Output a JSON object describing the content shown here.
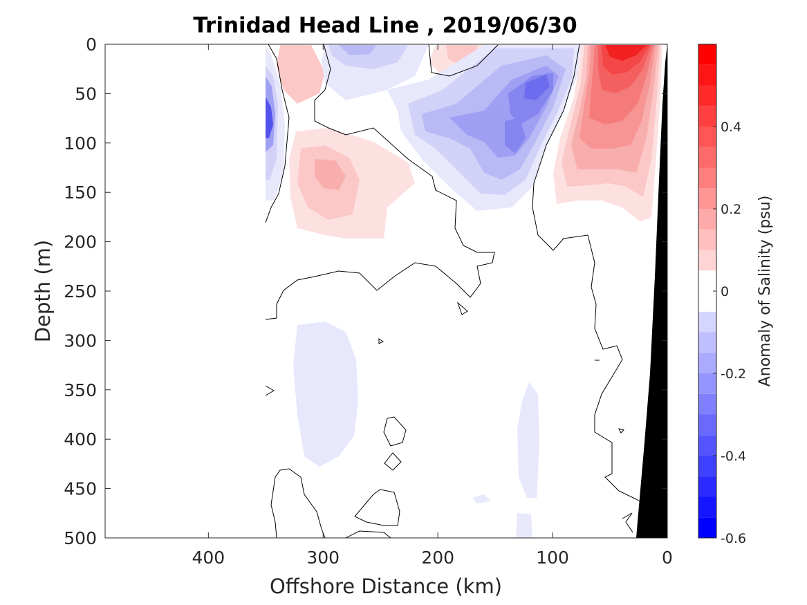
{
  "chart_data": {
    "type": "heatmap",
    "title": "Trinidad Head Line , 2019/06/30",
    "xlabel": "Offshore Distance (km)",
    "ylabel": "Depth (m)",
    "colorbar_label": "Anomaly of Salinity (psu)",
    "xlim": [
      490,
      0
    ],
    "ylim": [
      500,
      0
    ],
    "x_ticks": [
      400,
      300,
      200,
      100,
      0
    ],
    "y_ticks": [
      0,
      50,
      100,
      150,
      200,
      250,
      300,
      350,
      400,
      450,
      500
    ],
    "clim": [
      -0.6,
      0.6
    ],
    "colorbar_ticks": [
      0.4,
      0.2,
      0,
      -0.2,
      -0.4,
      -0.6
    ],
    "contour_levels_step": 0.05,
    "zero_contour": true,
    "colormap": "blue-white-red",
    "colors": {
      "negative": "#0000ff",
      "zero": "#ffffff",
      "positive": "#ff0000",
      "bathymetry": "#000000",
      "contour": "#000000"
    },
    "features": [
      {
        "name": "nearshore surface high",
        "x": [
          80,
          10
        ],
        "depth": [
          0,
          180
        ],
        "peak": 0.55
      },
      {
        "name": "offshore subsurface high",
        "x": [
          330,
          270
        ],
        "depth": [
          90,
          200
        ],
        "peak": 0.2
      },
      {
        "name": "surface low near 120 km",
        "x": [
          140,
          90
        ],
        "depth": [
          0,
          150
        ],
        "peak": -0.3
      },
      {
        "name": "surface low near 250 km",
        "x": [
          290,
          210
        ],
        "depth": [
          0,
          50
        ],
        "peak": -0.15
      },
      {
        "name": "western edge low",
        "x": [
          350,
          335
        ],
        "depth": [
          40,
          120
        ],
        "peak": -0.4
      },
      {
        "name": "deep weak low",
        "x": [
          320,
          260
        ],
        "depth": [
          280,
          430
        ],
        "peak": -0.07
      }
    ]
  }
}
